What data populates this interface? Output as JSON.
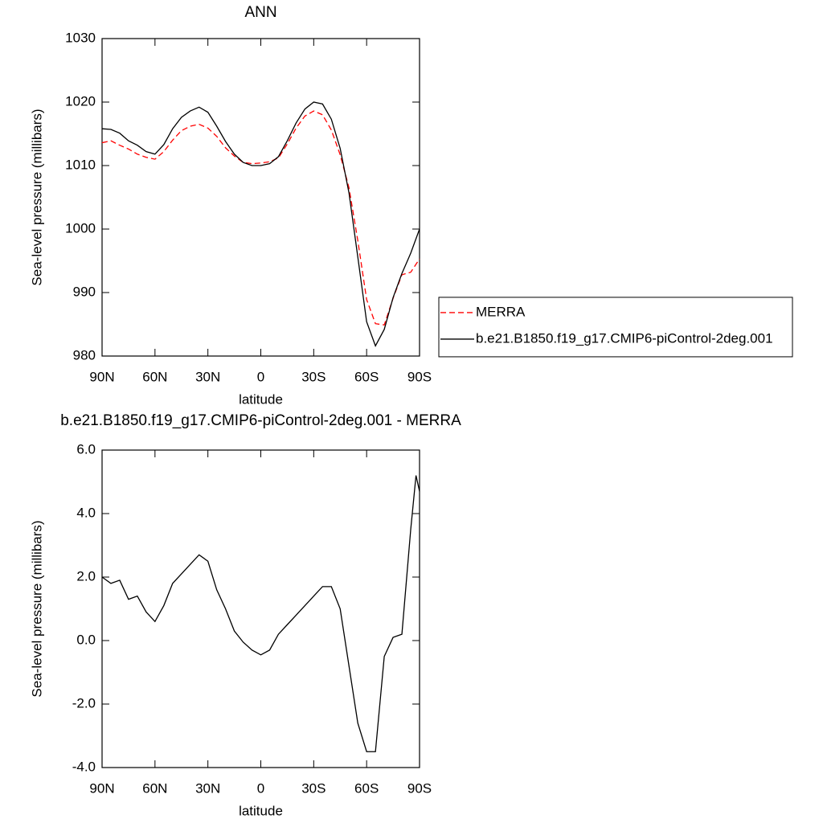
{
  "chart_data": [
    {
      "type": "line",
      "title": "ANN",
      "xlabel": "latitude",
      "ylabel": "Sea-level pressure (millibars)",
      "x": [
        90,
        85,
        80,
        75,
        70,
        65,
        60,
        55,
        50,
        45,
        40,
        35,
        30,
        25,
        20,
        15,
        10,
        5,
        0,
        -5,
        -10,
        -15,
        -20,
        -25,
        -30,
        -35,
        -40,
        -45,
        -50,
        -55,
        -60,
        -65,
        -70,
        -75,
        -80,
        -85,
        -90
      ],
      "series": [
        {
          "name": "MERRA",
          "color": "#ff0000",
          "linestyle": "dashed",
          "values": [
            1013.6,
            1013.9,
            1013.2,
            1012.6,
            1011.8,
            1011.3,
            1011.0,
            1012.2,
            1014.0,
            1015.5,
            1016.2,
            1016.5,
            1015.9,
            1014.6,
            1012.8,
            1011.5,
            1010.5,
            1010.3,
            1010.4,
            1010.6,
            1011.2,
            1013.4,
            1015.9,
            1017.8,
            1018.6,
            1018.0,
            1015.6,
            1011.7,
            1006.5,
            998.2,
            988.9,
            985.1,
            984.9,
            989.1,
            992.8,
            993.2,
            995.3
          ]
        },
        {
          "name": "b.e21.B1850.f19_g17.CMIP6-piControl-2deg.001",
          "color": "#000000",
          "linestyle": "solid",
          "values": [
            1015.8,
            1015.7,
            1015.1,
            1013.9,
            1013.2,
            1012.2,
            1011.8,
            1013.3,
            1015.8,
            1017.6,
            1018.6,
            1019.2,
            1018.4,
            1016.2,
            1013.8,
            1011.8,
            1010.5,
            1010.0,
            1010.0,
            1010.3,
            1011.4,
            1013.9,
            1016.7,
            1018.9,
            1020.0,
            1019.7,
            1017.3,
            1012.7,
            1005.7,
            995.6,
            985.4,
            981.6,
            984.2,
            989.2,
            993.0,
            996.2,
            1000.0
          ]
        }
      ],
      "xlim": [
        90,
        -90
      ],
      "xticks": [
        {
          "value": 90,
          "label": "90N"
        },
        {
          "value": 60,
          "label": "60N"
        },
        {
          "value": 30,
          "label": "30N"
        },
        0,
        {
          "value": -30,
          "label": "30S"
        },
        {
          "value": -60,
          "label": "60S"
        },
        {
          "value": -90,
          "label": "90S"
        }
      ],
      "ylim": [
        980,
        1030
      ],
      "yticks": [
        980,
        990,
        1000,
        1010,
        1020,
        1030
      ],
      "legend": "right"
    },
    {
      "type": "line",
      "title": "b.e21.B1850.f19_g17.CMIP6-piControl-2deg.001 - MERRA",
      "xlabel": "latitude",
      "ylabel": "Sea-level pressure (millibars)",
      "x": [
        90,
        85,
        80,
        75,
        70,
        65,
        60,
        55,
        50,
        45,
        40,
        35,
        30,
        25,
        20,
        15,
        10,
        5,
        0,
        -5,
        -10,
        -15,
        -20,
        -25,
        -30,
        -35,
        -40,
        -45,
        -50,
        -55,
        -60,
        -65,
        -70,
        -75,
        -80,
        -85,
        -88,
        -90
      ],
      "series": [
        {
          "color": "#000000",
          "linestyle": "solid",
          "values": [
            2.0,
            1.8,
            1.9,
            1.3,
            1.4,
            0.9,
            0.6,
            1.1,
            1.8,
            2.1,
            2.4,
            2.7,
            2.5,
            1.6,
            1.0,
            0.3,
            -0.05,
            -0.3,
            -0.45,
            -0.3,
            0.2,
            0.5,
            0.8,
            1.1,
            1.4,
            1.7,
            1.7,
            1.0,
            -0.8,
            -2.6,
            -3.5,
            -3.5,
            -0.5,
            0.1,
            0.2,
            3.5,
            5.2,
            4.7
          ]
        }
      ],
      "xlim": [
        90,
        -90
      ],
      "xticks": [
        {
          "value": 90,
          "label": "90N"
        },
        {
          "value": 60,
          "label": "60N"
        },
        {
          "value": 30,
          "label": "30N"
        },
        0,
        {
          "value": -30,
          "label": "30S"
        },
        {
          "value": -60,
          "label": "60S"
        },
        {
          "value": -90,
          "label": "90S"
        }
      ],
      "ylim": [
        -4,
        6
      ],
      "yticks": [
        {
          "value": -4,
          "label": "-4.0"
        },
        {
          "value": -2,
          "label": "-2.0"
        },
        {
          "value": 0,
          "label": "0.0"
        },
        {
          "value": 2,
          "label": "2.0"
        },
        {
          "value": 4,
          "label": "4.0"
        },
        {
          "value": 6,
          "label": "6.0"
        }
      ]
    }
  ]
}
